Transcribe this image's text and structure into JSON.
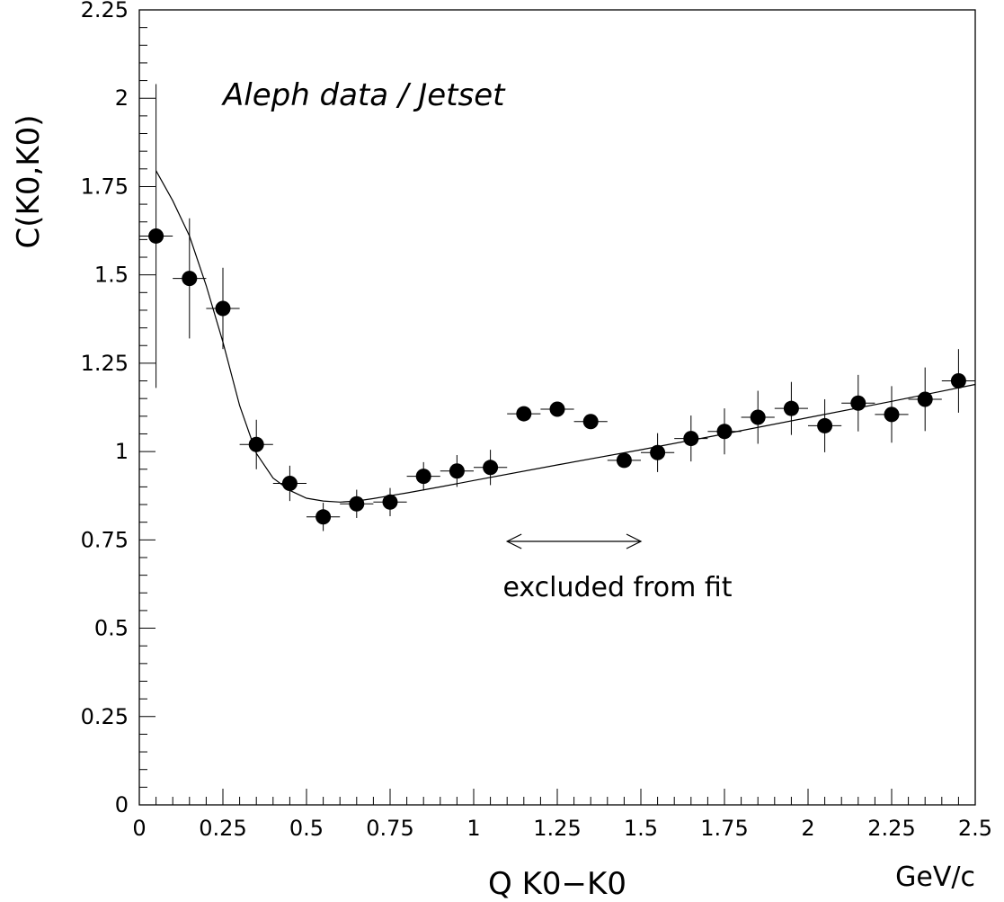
{
  "chart_data": {
    "type": "scatter",
    "title": "Aleph data / Jetset",
    "xlabel": "Q K0−K0",
    "xunit": "GeV/c",
    "ylabel": "C(K0,K0)",
    "xlim": [
      0,
      2.5
    ],
    "ylim": [
      0,
      2.25
    ],
    "x_ticks": [
      "0",
      "0.25",
      "0.5",
      "0.75",
      "1",
      "1.25",
      "1.5",
      "1.75",
      "2",
      "2.25",
      "2.5"
    ],
    "y_ticks": [
      "0",
      "0.25",
      "0.5",
      "0.75",
      "1",
      "1.25",
      "1.5",
      "1.75",
      "2",
      "2.25"
    ],
    "grid": false,
    "annotation": {
      "text": "excluded from fit",
      "range": [
        1.1,
        1.5
      ]
    },
    "series": [
      {
        "points": [
          {
            "x": 0.05,
            "y": 1.61,
            "yerr": 0.43
          },
          {
            "x": 0.15,
            "y": 1.49,
            "yerr": 0.17
          },
          {
            "x": 0.25,
            "y": 1.405,
            "yerr": 0.115
          },
          {
            "x": 0.35,
            "y": 1.02,
            "yerr": 0.07
          },
          {
            "x": 0.45,
            "y": 0.91,
            "yerr": 0.05
          },
          {
            "x": 0.55,
            "y": 0.815,
            "yerr": 0.04
          },
          {
            "x": 0.65,
            "y": 0.852,
            "yerr": 0.04
          },
          {
            "x": 0.75,
            "y": 0.857,
            "yerr": 0.04
          },
          {
            "x": 0.85,
            "y": 0.93,
            "yerr": 0.04
          },
          {
            "x": 0.95,
            "y": 0.945,
            "yerr": 0.045
          },
          {
            "x": 1.05,
            "y": 0.955,
            "yerr": 0.05
          },
          {
            "x": 1.15,
            "y": 1.107,
            "yerr": 0.0
          },
          {
            "x": 1.25,
            "y": 1.12,
            "yerr": 0.0
          },
          {
            "x": 1.35,
            "y": 1.085,
            "yerr": 0.0
          },
          {
            "x": 1.45,
            "y": 0.975,
            "yerr": 0.0
          },
          {
            "x": 1.55,
            "y": 0.997,
            "yerr": 0.055
          },
          {
            "x": 1.65,
            "y": 1.037,
            "yerr": 0.065
          },
          {
            "x": 1.75,
            "y": 1.057,
            "yerr": 0.065
          },
          {
            "x": 1.85,
            "y": 1.097,
            "yerr": 0.075
          },
          {
            "x": 1.95,
            "y": 1.122,
            "yerr": 0.075
          },
          {
            "x": 2.05,
            "y": 1.073,
            "yerr": 0.075
          },
          {
            "x": 2.15,
            "y": 1.137,
            "yerr": 0.08
          },
          {
            "x": 2.25,
            "y": 1.105,
            "yerr": 0.08
          },
          {
            "x": 2.35,
            "y": 1.148,
            "yerr": 0.09
          },
          {
            "x": 2.45,
            "y": 1.2,
            "yerr": 0.09
          }
        ],
        "xerr": 0.05
      },
      {
        "type": "line",
        "x": [
          0.05,
          0.1,
          0.15,
          0.2,
          0.25,
          0.3,
          0.35,
          0.4,
          0.45,
          0.5,
          0.55,
          0.6,
          0.65,
          0.7,
          0.75,
          0.8,
          0.9,
          1.0,
          1.25,
          1.5,
          1.75,
          2.0,
          2.25,
          2.5
        ],
        "y": [
          1.795,
          1.71,
          1.61,
          1.47,
          1.31,
          1.13,
          0.995,
          0.925,
          0.89,
          0.868,
          0.86,
          0.857,
          0.86,
          0.867,
          0.875,
          0.883,
          0.9,
          0.918,
          0.962,
          1.005,
          1.05,
          1.096,
          1.142,
          1.19
        ]
      }
    ]
  }
}
